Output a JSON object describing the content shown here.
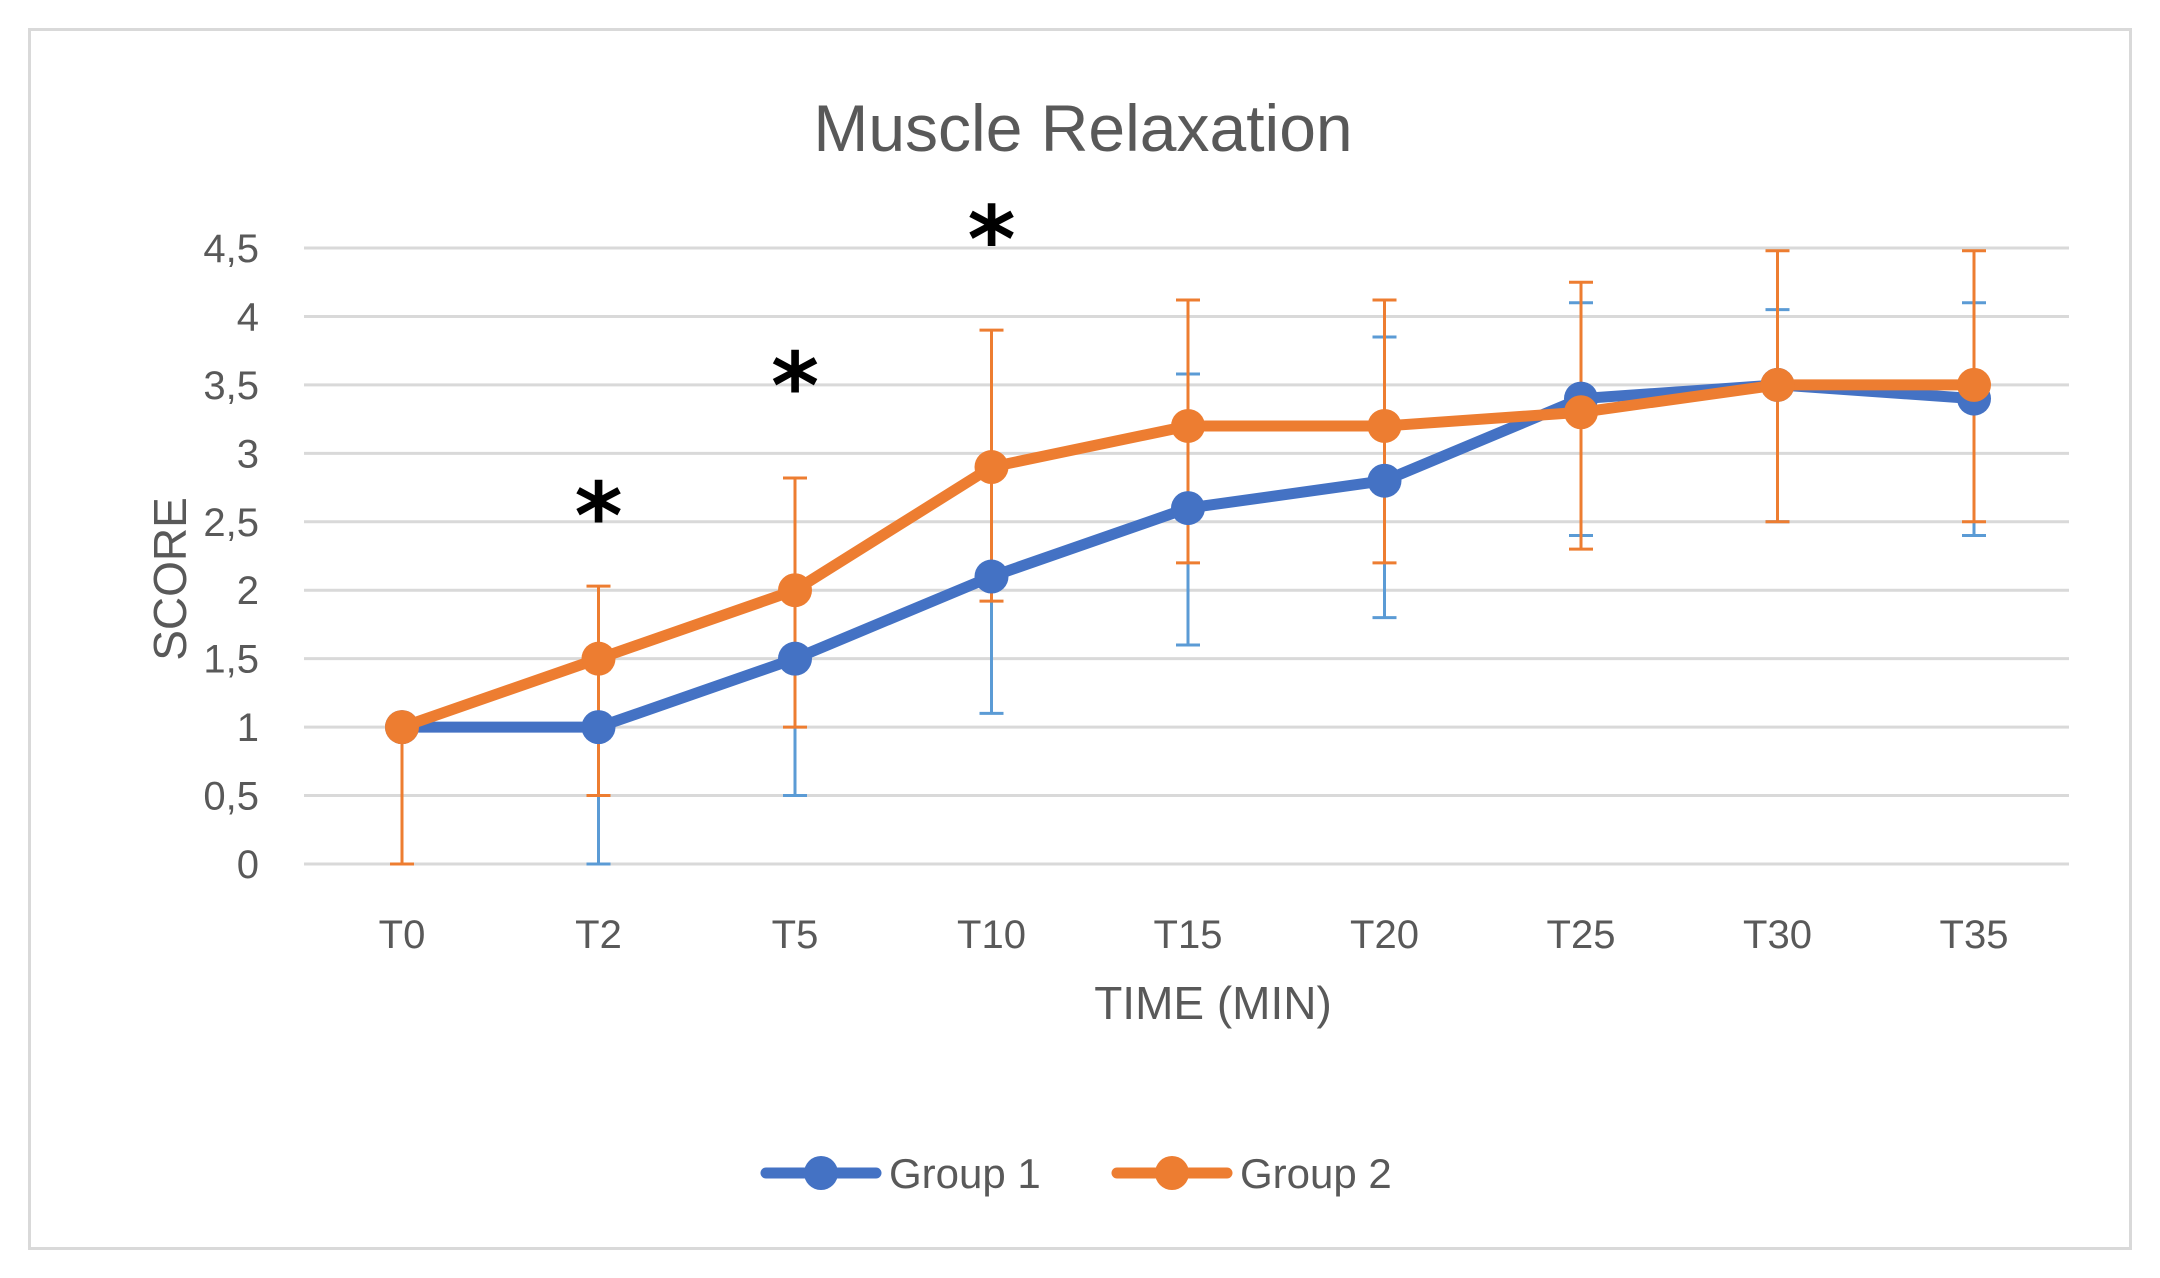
{
  "chart_data": {
    "type": "line",
    "title": "Muscle Relaxation",
    "xlabel": "TIME (MIN)",
    "ylabel": "SCORE",
    "ylim": [
      0,
      4.5
    ],
    "categories": [
      "T0",
      "T2",
      "T5",
      "T10",
      "T15",
      "T20",
      "T25",
      "T30",
      "T35"
    ],
    "ytick_labels": [
      "0",
      "0,5",
      "1",
      "1,5",
      "2",
      "2,5",
      "3",
      "3,5",
      "4",
      "4,5"
    ],
    "ytick_values": [
      0,
      0.5,
      1,
      1.5,
      2,
      2.5,
      3,
      3.5,
      4,
      4.5
    ],
    "grid": true,
    "legend_position": "bottom",
    "series": [
      {
        "name": "Group 1",
        "color": "#4472C4",
        "values": [
          1,
          1,
          1.5,
          2.1,
          2.6,
          2.8,
          3.4,
          3.5,
          3.4
        ],
        "error_lower": [
          1,
          0,
          0.5,
          1.1,
          1.6,
          1.8,
          2.4,
          2.5,
          2.4
        ],
        "error_upper": [
          1,
          1,
          1.5,
          2.1,
          3.58,
          3.85,
          4.1,
          4.05,
          4.1
        ]
      },
      {
        "name": "Group 2",
        "color": "#ED7D31",
        "values": [
          1,
          1.5,
          2,
          2.9,
          3.2,
          3.2,
          3.3,
          3.5,
          3.5
        ],
        "error_lower": [
          0,
          0.5,
          1,
          1.92,
          2.2,
          2.2,
          2.3,
          2.5,
          2.5
        ],
        "error_upper": [
          1,
          2.03,
          2.82,
          3.9,
          4.12,
          4.12,
          4.25,
          4.48,
          4.48
        ]
      }
    ],
    "annotations": [
      {
        "text": "*",
        "category": "T2",
        "y": 2.6
      },
      {
        "text": "*",
        "category": "T5",
        "y": 3.55
      },
      {
        "text": "*",
        "category": "T10",
        "y": 4.62
      }
    ]
  }
}
